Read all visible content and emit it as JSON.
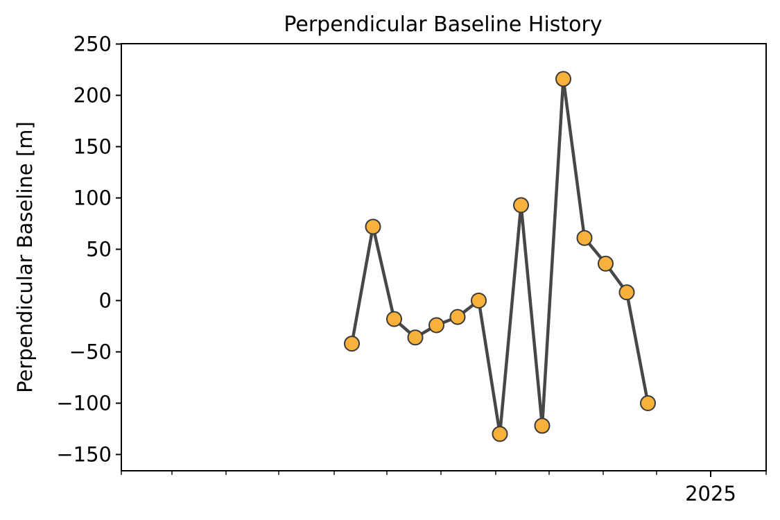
{
  "chart_data": {
    "type": "line",
    "title": "Perpendicular Baseline History",
    "xlabel": "",
    "ylabel": "Perpendicular Baseline [m]",
    "x_tick_labels": [
      "2025"
    ],
    "y_ticks": [
      -150,
      -100,
      -50,
      0,
      50,
      100,
      150,
      200,
      250
    ],
    "y_tick_labels": [
      "−150",
      "−100",
      "−50",
      "0",
      "50",
      "100",
      "150",
      "200",
      "250"
    ],
    "ylim": [
      -163,
      250
    ],
    "grid": false,
    "legend": "none",
    "colors": {
      "line": "#474747",
      "marker_fill": "#F8B23B",
      "marker_edge": "#3a3a3a"
    },
    "series": [
      {
        "x": [
          1,
          2,
          3,
          4,
          5,
          6,
          7,
          8,
          9,
          10,
          11,
          12,
          13,
          14,
          15
        ],
        "values": [
          -42,
          72,
          -18,
          -36,
          -24,
          -16,
          0,
          -130,
          93,
          -122,
          216,
          61,
          36,
          8,
          -100
        ]
      }
    ]
  }
}
